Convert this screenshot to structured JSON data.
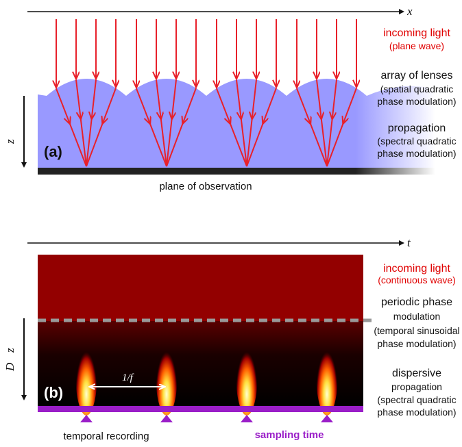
{
  "panel_a": {
    "label": "(a)",
    "x_axis": "x",
    "z_axis": "z",
    "annotations": [
      {
        "title": "incoming light",
        "lines": [
          "(plane wave)"
        ]
      },
      {
        "title": "array of lenses",
        "lines": [
          "(spatial quadratic",
          "phase modulation)"
        ]
      },
      {
        "title": "propagation",
        "lines": [
          "(spectral quadratic",
          "phase modulation)"
        ]
      }
    ],
    "observation": "plane of observation"
  },
  "panel_b": {
    "label": "(b)",
    "t_axis": "t",
    "z_axis": "z",
    "d_label": "D",
    "period": "1/f",
    "annotations": [
      {
        "title": "incoming light",
        "lines": [
          "(continuous wave)"
        ]
      },
      {
        "title": "periodic phase",
        "lines": [
          "modulation",
          "(temporal sinusoidal",
          "phase modulation)"
        ]
      },
      {
        "title": "dispersive",
        "lines": [
          "propagation",
          "(spectral quadratic",
          "phase modulation)"
        ]
      }
    ],
    "recording": "temporal recording",
    "sampling": "sampling time"
  }
}
